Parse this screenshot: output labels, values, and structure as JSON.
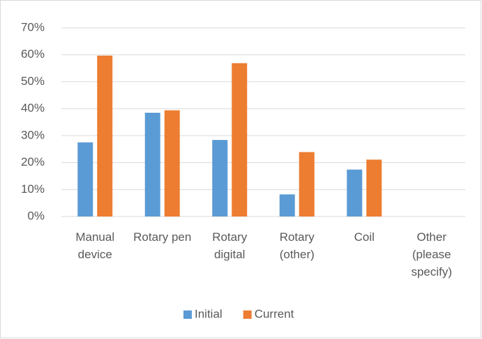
{
  "chart_data": {
    "type": "bar",
    "categories": [
      "Manual device",
      "Rotary pen",
      "Rotary digital",
      "Rotary (other)",
      "Coil",
      "Other (please specify)"
    ],
    "series": [
      {
        "name": "Initial",
        "color": "#5b9bd5",
        "values": [
          27.5,
          38.5,
          28.4,
          8.2,
          17.4,
          0
        ]
      },
      {
        "name": "Current",
        "color": "#ed7d31",
        "values": [
          59.7,
          39.4,
          56.9,
          23.9,
          21.1,
          0
        ]
      }
    ],
    "ylim": [
      0,
      70
    ],
    "yticks": [
      {
        "value": 0,
        "label": "0%"
      },
      {
        "value": 10,
        "label": "10%"
      },
      {
        "value": 20,
        "label": "20%"
      },
      {
        "value": 30,
        "label": "30%"
      },
      {
        "value": 40,
        "label": "40%"
      },
      {
        "value": 50,
        "label": "50%"
      },
      {
        "value": 60,
        "label": "60%"
      },
      {
        "value": 70,
        "label": "70%"
      }
    ],
    "grid": true,
    "legend": "bottom"
  }
}
